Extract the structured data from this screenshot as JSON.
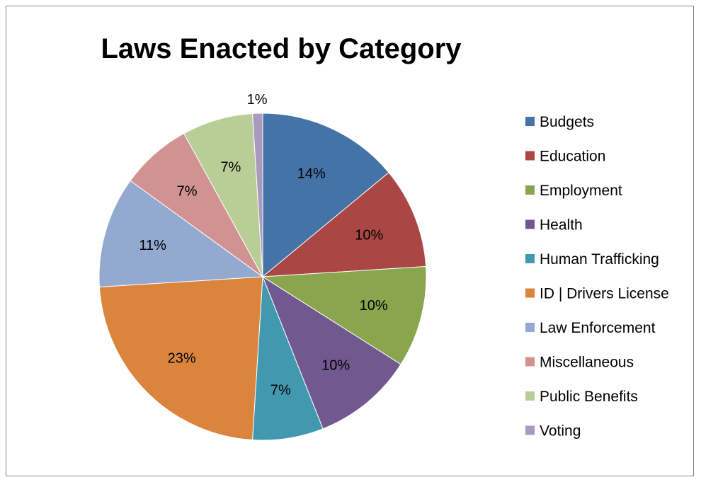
{
  "chart_data": {
    "type": "pie",
    "title": "Laws Enacted by Category",
    "legend_position": "right",
    "categories": [
      "Budgets",
      "Education",
      "Employment",
      "Health",
      "Human Trafficking",
      "ID | Drivers License",
      "Law Enforcement",
      "Miscellaneous",
      "Public Benefits",
      "Voting"
    ],
    "values": [
      14,
      10,
      10,
      10,
      7,
      23,
      11,
      7,
      7,
      1
    ],
    "labels": [
      "14%",
      "10%",
      "10%",
      "10%",
      "7%",
      "23%",
      "11%",
      "7%",
      "7%",
      "1%"
    ],
    "colors": [
      "#4572a7",
      "#aa4643",
      "#89a54e",
      "#71588f",
      "#4198af",
      "#db843d",
      "#93a9cf",
      "#d19392",
      "#b9cd96",
      "#a99bbd"
    ]
  }
}
